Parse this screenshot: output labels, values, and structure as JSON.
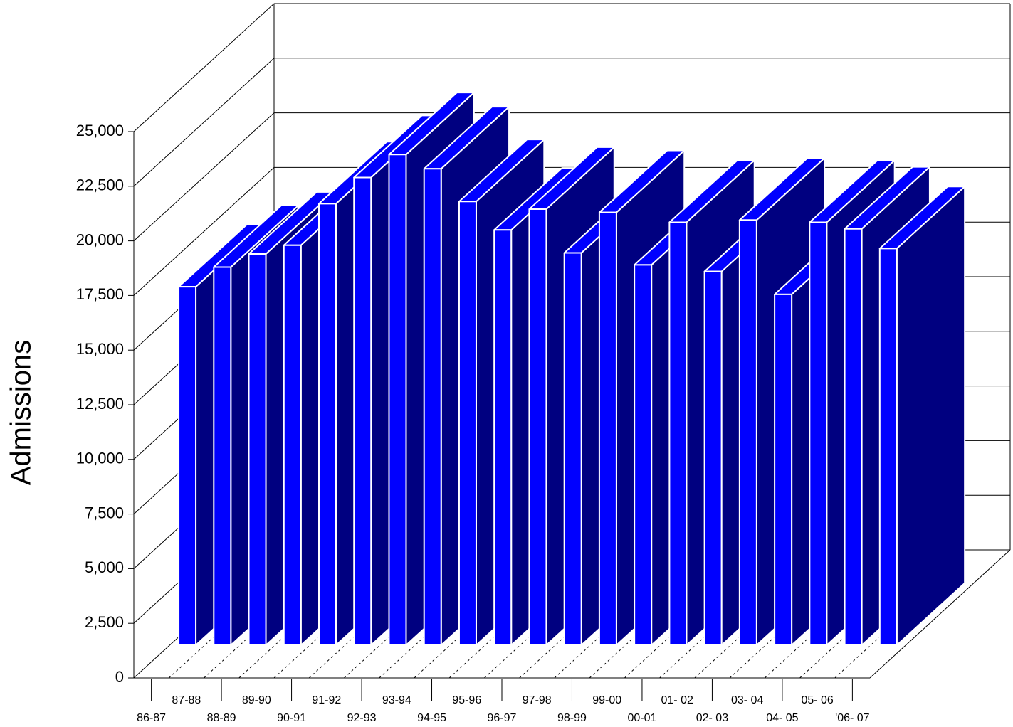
{
  "chart_data": {
    "type": "bar3d",
    "y_label": "Admissions",
    "categories": [
      "86-87",
      "87-88",
      "88-89",
      "89-90",
      "90-91",
      "91-92",
      "92-93",
      "93-94",
      "94-95",
      "95-96",
      "96-97",
      "97-98",
      "98-99",
      "99-00",
      "00-01",
      "01- 02",
      "02- 03",
      "03- 04",
      "04- 05",
      "05- 06",
      "'06- 07"
    ],
    "values": [
      16400,
      17300,
      17900,
      18300,
      20200,
      21400,
      22450,
      21800,
      20300,
      19000,
      19950,
      17950,
      19800,
      17400,
      19350,
      17100,
      19450,
      16050,
      19350,
      19050,
      18150
    ],
    "colors": {
      "front": "#0000ff",
      "top": "#0000ff",
      "side": "#000080"
    },
    "ylim": [
      0,
      25000
    ],
    "yticks": [
      0,
      {
        "value": 2500,
        "label": "2,500"
      },
      {
        "value": 5000,
        "label": "5,000"
      },
      {
        "value": 7500,
        "label": "7,500"
      },
      {
        "value": 10000,
        "label": "10,000"
      },
      {
        "value": 12500,
        "label": "12,500"
      },
      {
        "value": 15000,
        "label": "15,000"
      },
      {
        "value": 17500,
        "label": "17,500"
      },
      {
        "value": 20000,
        "label": "20,000"
      },
      {
        "value": 22500,
        "label": "22,500"
      },
      {
        "value": 25000,
        "label": "25,000"
      }
    ],
    "grid": true
  }
}
